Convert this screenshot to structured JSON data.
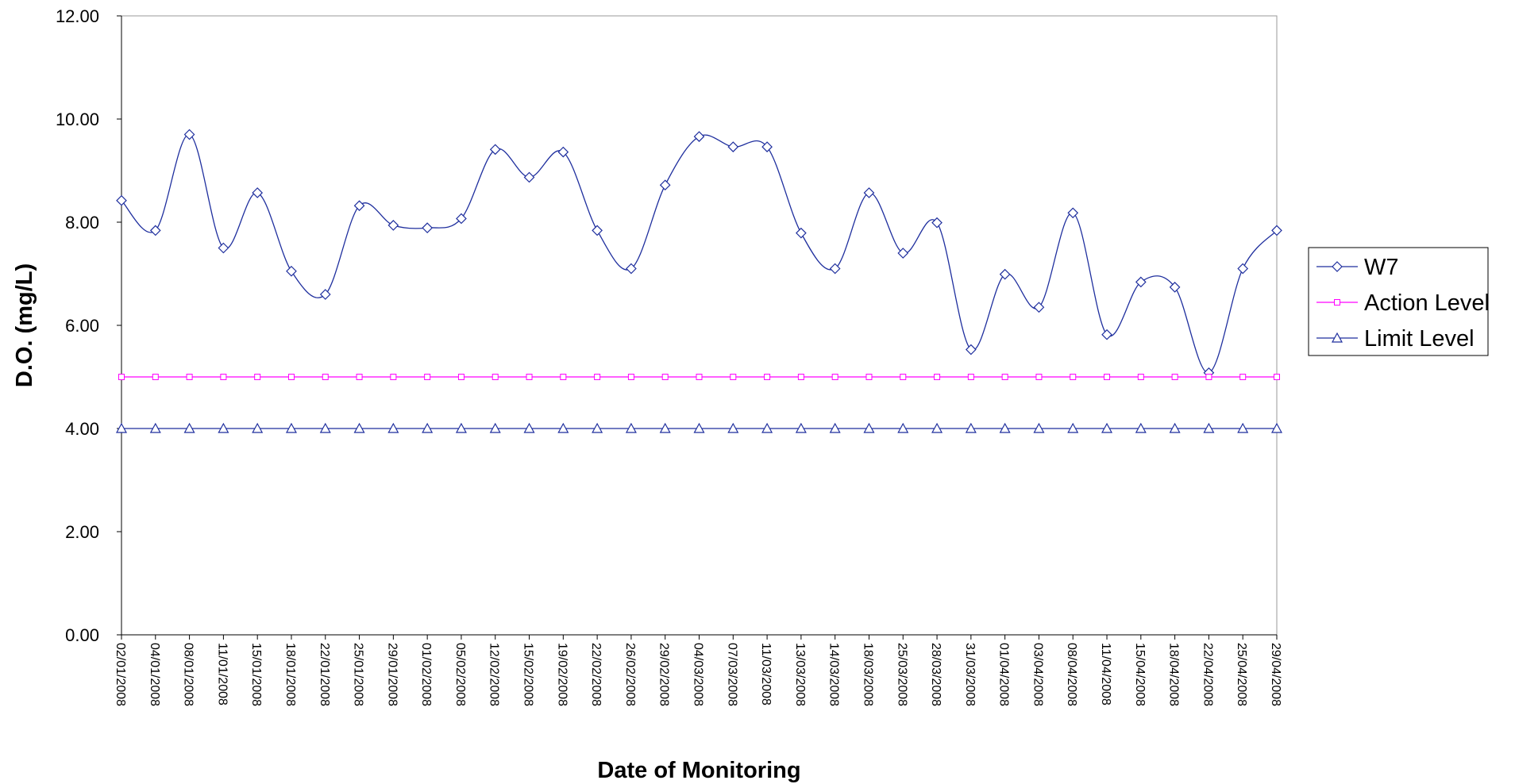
{
  "chart_data": {
    "type": "line",
    "xlabel": "Date of Monitoring",
    "ylabel": "D.O. (mg/L)",
    "ylim": [
      0,
      12
    ],
    "yticks": [
      "0.00",
      "2.00",
      "4.00",
      "6.00",
      "8.00",
      "10.00",
      "12.00"
    ],
    "grid": false,
    "legend_position": "right",
    "x": [
      "02/01/2008",
      "04/01/2008",
      "08/01/2008",
      "11/01/2008",
      "15/01/2008",
      "18/01/2008",
      "22/01/2008",
      "25/01/2008",
      "29/01/2008",
      "01/02/2008",
      "05/02/2008",
      "12/02/2008",
      "15/02/2008",
      "19/02/2008",
      "22/02/2008",
      "26/02/2008",
      "29/02/2008",
      "04/03/2008",
      "07/03/2008",
      "11/03/2008",
      "13/03/2008",
      "14/03/2008",
      "18/03/2008",
      "25/03/2008",
      "28/03/2008",
      "31/03/2008",
      "01/04/2008",
      "03/04/2008",
      "08/04/2008",
      "11/04/2008",
      "15/04/2008",
      "18/04/2008",
      "22/04/2008",
      "25/04/2008",
      "29/04/2008"
    ],
    "series": [
      {
        "name": "W7",
        "color": "#1f2f9e",
        "marker": "diamond",
        "smooth": true,
        "values": [
          8.42,
          7.84,
          9.7,
          7.5,
          8.57,
          7.05,
          6.6,
          8.32,
          7.94,
          7.89,
          8.07,
          9.41,
          8.87,
          9.36,
          7.84,
          7.1,
          8.72,
          9.66,
          9.46,
          9.46,
          7.79,
          7.1,
          8.57,
          7.4,
          7.99,
          5.53,
          6.99,
          6.35,
          8.18,
          5.82,
          6.84,
          6.74,
          5.08,
          7.1,
          7.84
        ]
      },
      {
        "name": "Action Level",
        "color": "#ff00ff",
        "marker": "square",
        "smooth": false,
        "values": [
          5,
          5,
          5,
          5,
          5,
          5,
          5,
          5,
          5,
          5,
          5,
          5,
          5,
          5,
          5,
          5,
          5,
          5,
          5,
          5,
          5,
          5,
          5,
          5,
          5,
          5,
          5,
          5,
          5,
          5,
          5,
          5,
          5,
          5,
          5
        ]
      },
      {
        "name": "Limit Level",
        "color": "#1f2f9e",
        "marker": "triangle",
        "smooth": false,
        "values": [
          4,
          4,
          4,
          4,
          4,
          4,
          4,
          4,
          4,
          4,
          4,
          4,
          4,
          4,
          4,
          4,
          4,
          4,
          4,
          4,
          4,
          4,
          4,
          4,
          4,
          4,
          4,
          4,
          4,
          4,
          4,
          4,
          4,
          4,
          4
        ]
      }
    ]
  }
}
